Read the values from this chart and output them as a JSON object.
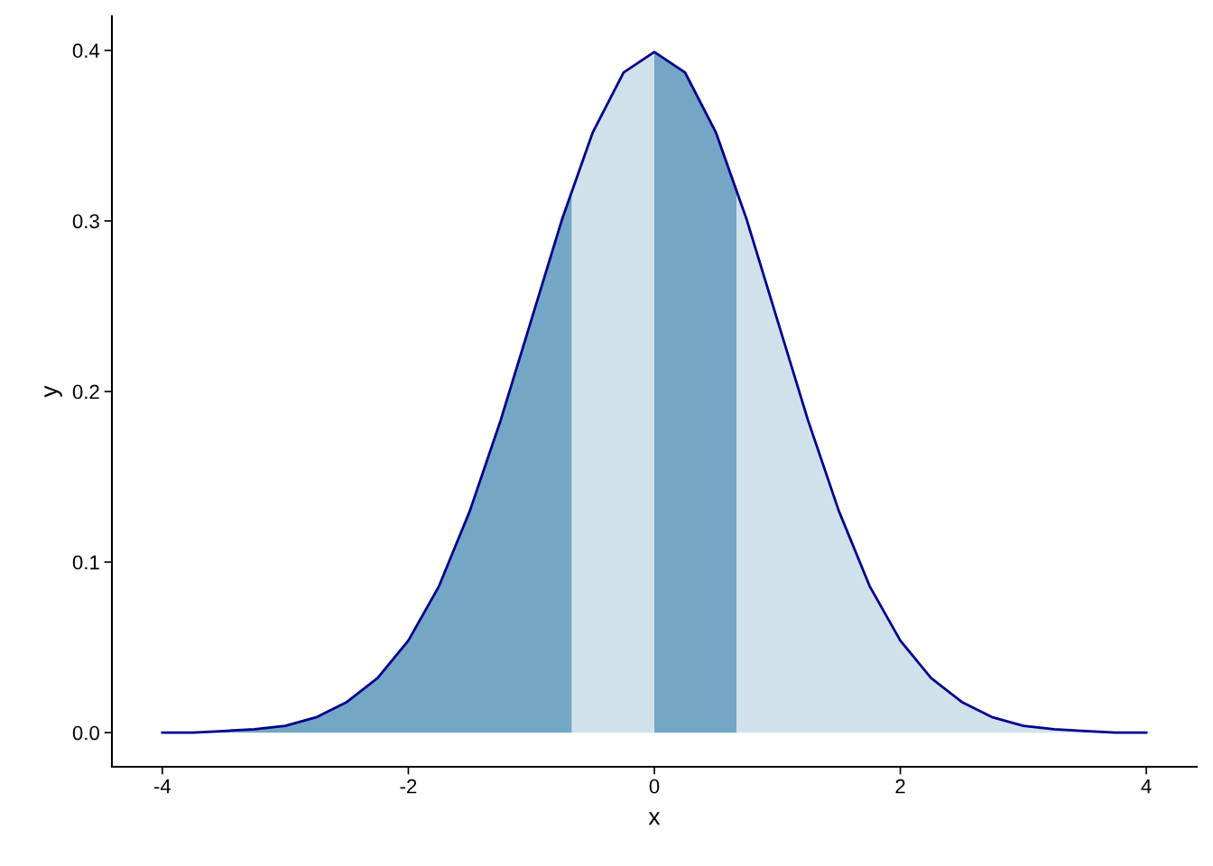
{
  "chart_data": {
    "type": "area",
    "xlabel": "x",
    "ylabel": "y",
    "xlim": [
      -4.41,
      4.41
    ],
    "ylim": [
      -0.02,
      0.42
    ],
    "xticks": [
      -4,
      -2,
      0,
      2,
      4
    ],
    "yticks": [
      {
        "value": 0,
        "label": "0.0"
      },
      0.1,
      0.2,
      0.3,
      0.4
    ],
    "grid": false,
    "legend": false,
    "series": [
      {
        "color": "#74a6c5",
        "x": [
          -4,
          -3.75,
          -3.5,
          -3.25,
          -3,
          -2.75,
          -2.5,
          -2.25,
          -2,
          -1.75,
          -1.5,
          -1.25,
          -1,
          -0.75,
          -0.67
        ],
        "values": [
          0.0,
          0.0,
          0.001,
          0.002,
          0.004,
          0.009,
          0.018,
          0.032,
          0.054,
          0.086,
          0.13,
          0.183,
          0.242,
          0.301,
          0.319
        ]
      },
      {
        "color": "#d1e1ec",
        "x": [
          -0.67,
          -0.5,
          -0.25,
          0
        ],
        "values": [
          0.319,
          0.352,
          0.387,
          0.399
        ]
      },
      {
        "color": "#74a6c5",
        "x": [
          0,
          0.25,
          0.5,
          0.67
        ],
        "values": [
          0.399,
          0.387,
          0.352,
          0.319
        ]
      },
      {
        "color": "#d1e1ec",
        "x": [
          0.67,
          0.75,
          1,
          1.25,
          1.5,
          1.75,
          2,
          2.25,
          2.5,
          2.75,
          3,
          3.25,
          3.5,
          3.75,
          4
        ],
        "values": [
          0.319,
          0.301,
          0.242,
          0.183,
          0.13,
          0.086,
          0.054,
          0.032,
          0.018,
          0.009,
          0.004,
          0.002,
          0.001,
          0.0,
          0.0
        ]
      },
      {
        "type": "line",
        "color": "#00008b",
        "x": [
          -4,
          -3.75,
          -3.5,
          -3.25,
          -3,
          -2.75,
          -2.5,
          -2.25,
          -2,
          -1.75,
          -1.5,
          -1.25,
          -1,
          -0.75,
          -0.5,
          -0.25,
          0,
          0.25,
          0.5,
          0.75,
          1,
          1.25,
          1.5,
          1.75,
          2,
          2.25,
          2.5,
          2.75,
          3,
          3.25,
          3.5,
          3.75,
          4
        ],
        "values": [
          0.0,
          0.0,
          0.001,
          0.002,
          0.004,
          0.009,
          0.018,
          0.032,
          0.054,
          0.086,
          0.13,
          0.183,
          0.242,
          0.301,
          0.352,
          0.387,
          0.399,
          0.387,
          0.352,
          0.301,
          0.242,
          0.183,
          0.13,
          0.086,
          0.054,
          0.032,
          0.018,
          0.009,
          0.004,
          0.002,
          0.001,
          0.0,
          0.0
        ]
      }
    ]
  }
}
